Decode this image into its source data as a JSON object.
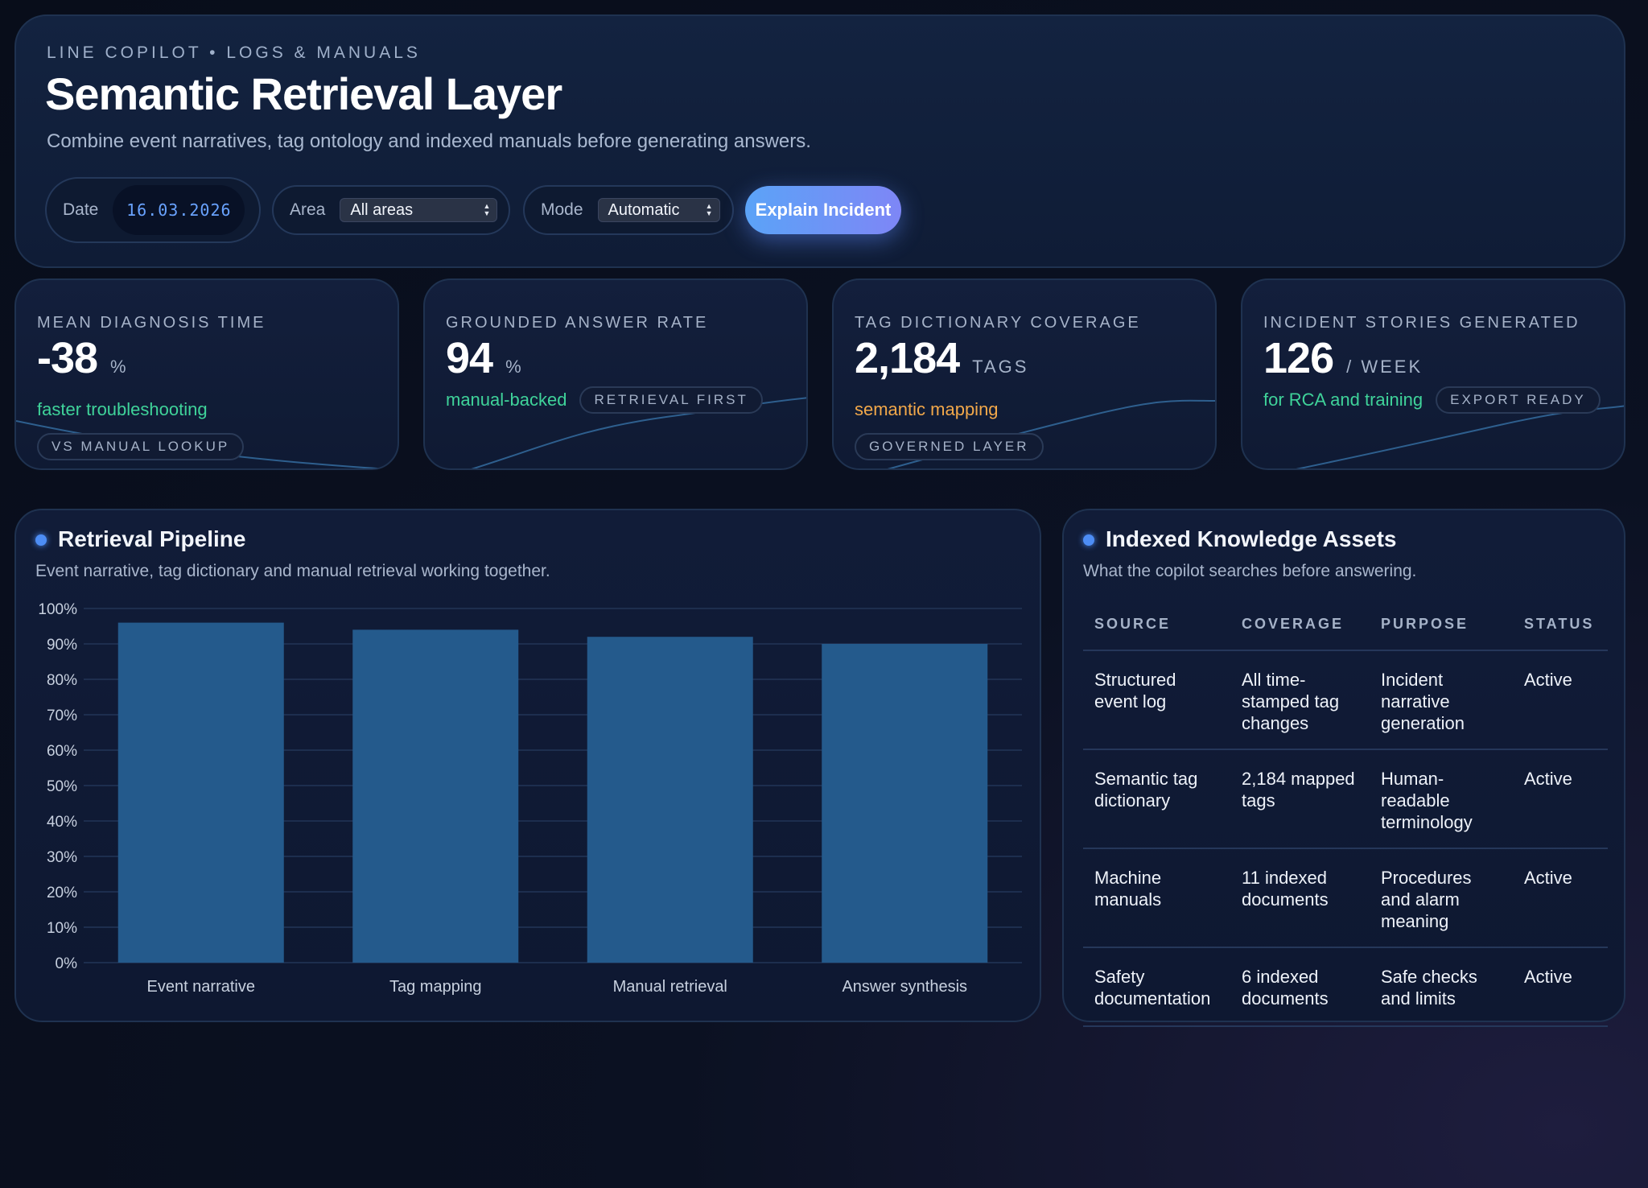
{
  "header": {
    "eyebrow": "LINE COPILOT • LOGS & MANUALS",
    "title": "Semantic Retrieval Layer",
    "subtitle": "Combine event narratives, tag ontology and indexed manuals before generating answers.",
    "date_label": "Date",
    "date_value": "16.03.2026",
    "area_label": "Area",
    "area_value": "All areas",
    "mode_label": "Mode",
    "mode_value": "Automatic",
    "explain_button": "Explain Incident"
  },
  "kpis": [
    {
      "label": "MEAN DIAGNOSIS TIME",
      "value": "-38",
      "unit": "%",
      "note": "faster troubleshooting",
      "tag": "VS MANUAL LOOKUP"
    },
    {
      "label": "GROUNDED ANSWER RATE",
      "value": "94",
      "unit": "%",
      "note": "manual-backed",
      "tag": "RETRIEVAL FIRST"
    },
    {
      "label": "TAG DICTIONARY COVERAGE",
      "value": "2,184",
      "unit": "TAGS",
      "note": "semantic mapping",
      "tag": "GOVERNED LAYER"
    },
    {
      "label": "INCIDENT STORIES GENERATED",
      "value": "126",
      "unit": "/ WEEK",
      "note": "for RCA and training",
      "tag": "EXPORT READY"
    }
  ],
  "pipeline": {
    "title": "Retrieval Pipeline",
    "subtitle": "Event narrative, tag dictionary and manual retrieval working together."
  },
  "chart_data": {
    "type": "bar",
    "categories": [
      "Event narrative",
      "Tag mapping",
      "Manual retrieval",
      "Answer synthesis"
    ],
    "values": [
      96,
      94,
      92,
      90
    ],
    "ylim": [
      0,
      100
    ],
    "yticks": [
      "0%",
      "10%",
      "20%",
      "30%",
      "40%",
      "50%",
      "60%",
      "70%",
      "80%",
      "90%",
      "100%"
    ],
    "grid": true,
    "bar_color": "#245a8c"
  },
  "assets": {
    "title": "Indexed Knowledge Assets",
    "subtitle": "What the copilot searches before answering.",
    "columns": [
      "SOURCE",
      "COVERAGE",
      "PURPOSE",
      "STATUS"
    ],
    "rows": [
      [
        "Structured event log",
        "All time-stamped tag changes",
        "Incident narrative generation",
        "Active"
      ],
      [
        "Semantic tag dictionary",
        "2,184 mapped tags",
        "Human-readable terminology",
        "Active"
      ],
      [
        "Machine manuals",
        "11 indexed documents",
        "Procedures and alarm meaning",
        "Active"
      ],
      [
        "Safety documentation",
        "6 indexed documents",
        "Safe checks and limits",
        "Active"
      ]
    ]
  },
  "colors": {
    "accent": "#4d8df5",
    "positive": "#3fd39a",
    "warning": "#f2a84a",
    "button_start": "#5ba3f7",
    "button_end": "#7e86f6"
  }
}
